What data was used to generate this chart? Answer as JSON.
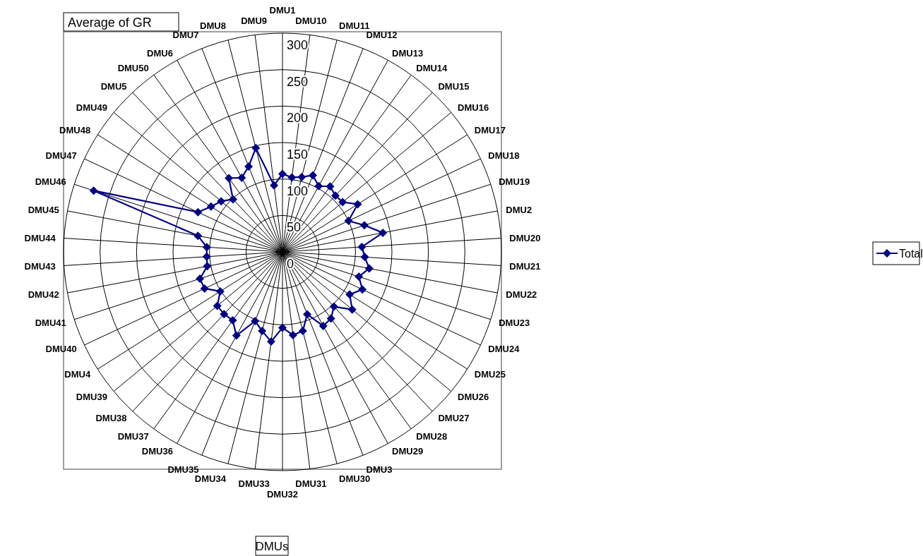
{
  "chart_data": {
    "type": "radar",
    "title": "Average of GR",
    "xlabel": "DMUs",
    "categories": [
      "DMU1",
      "DMU10",
      "DMU11",
      "DMU12",
      "DMU13",
      "DMU14",
      "DMU15",
      "DMU16",
      "DMU17",
      "DMU18",
      "DMU19",
      "DMU2",
      "DMU20",
      "DMU21",
      "DMU22",
      "DMU23",
      "DMU24",
      "DMU25",
      "DMU26",
      "DMU27",
      "DMU28",
      "DMU29",
      "DMU3",
      "DMU30",
      "DMU31",
      "DMU32",
      "DMU33",
      "DMU34",
      "DMU35",
      "DMU36",
      "DMU37",
      "DMU38",
      "DMU39",
      "DMU4",
      "DMU40",
      "DMU41",
      "DMU42",
      "DMU43",
      "DMU44",
      "DMU45",
      "DMU46",
      "DMU47",
      "DMU48",
      "DMU49",
      "DMU5",
      "DMU50",
      "DMU6",
      "DMU7",
      "DMU8",
      "DMU9"
    ],
    "series": [
      {
        "name": "Total",
        "color": "#000080",
        "values": [
          107,
          103,
          106,
          113,
          103,
          111,
          106,
          107,
          122,
          100,
          118,
          140,
          109,
          113,
          121,
          110,
          121,
          109,
          124,
          103,
          113,
          116,
          92,
          112,
          115,
          104,
          124,
          112,
          102,
          131,
          116,
          117,
          116,
          101,
          118,
          119,
          105,
          104,
          104,
          118,
          272,
          128,
          116,
          109,
          99,
          125,
          116,
          126,
          147,
          92
        ]
      }
    ],
    "ylim": [
      0,
      300
    ],
    "yticks": [
      0,
      50,
      100,
      150,
      200,
      250,
      300
    ],
    "grid": true,
    "legend": "right",
    "marker": "diamond",
    "line_style": "solid"
  }
}
